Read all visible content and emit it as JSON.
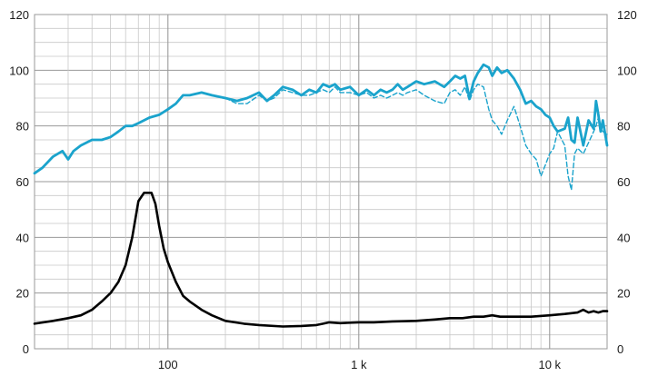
{
  "chart_data": {
    "type": "line",
    "title": "",
    "xlabel": "",
    "ylabel": "",
    "xscale": "log",
    "xlim": [
      20,
      20000
    ],
    "ylim": [
      0,
      120
    ],
    "grid": true,
    "legend": "none",
    "y_ticks": [
      0,
      20,
      40,
      60,
      80,
      100,
      120
    ],
    "y_tick_labels": [
      "0",
      "20",
      "40",
      "60",
      "80",
      "100",
      "120"
    ],
    "x_ticks": [
      100,
      1000,
      10000
    ],
    "x_tick_labels": [
      "100",
      "1 k",
      "10 k"
    ],
    "series": [
      {
        "color": "#1aa3cc",
        "style": "solid",
        "x": [
          20,
          22,
          25,
          28,
          30,
          32,
          35,
          40,
          45,
          50,
          55,
          60,
          65,
          70,
          80,
          90,
          100,
          110,
          120,
          130,
          150,
          170,
          200,
          230,
          260,
          300,
          330,
          360,
          400,
          450,
          500,
          550,
          600,
          650,
          700,
          750,
          800,
          900,
          1000,
          1100,
          1200,
          1300,
          1400,
          1500,
          1600,
          1700,
          1800,
          2000,
          2200,
          2500,
          2800,
          3000,
          3200,
          3400,
          3600,
          3800,
          4000,
          4200,
          4500,
          4800,
          5000,
          5300,
          5600,
          6000,
          6500,
          7000,
          7500,
          8000,
          8500,
          9000,
          9500,
          10000,
          10500,
          11000,
          12000,
          12500,
          13000,
          13500,
          14000,
          15000,
          16000,
          17000,
          17500,
          18000,
          18500,
          19000,
          20000
        ],
        "y": [
          63,
          65,
          69,
          71,
          68,
          71,
          73,
          75,
          75,
          76,
          78,
          80,
          80,
          81,
          83,
          84,
          86,
          88,
          91,
          91,
          92,
          91,
          90,
          89,
          90,
          92,
          89,
          91,
          94,
          93,
          91,
          93,
          92,
          95,
          94,
          95,
          93,
          94,
          91,
          93,
          91,
          93,
          92,
          93,
          95,
          93,
          94,
          96,
          95,
          96,
          94,
          96,
          98,
          97,
          98,
          90,
          96,
          99,
          102,
          101,
          98,
          101,
          99,
          100,
          97,
          93,
          88,
          89,
          87,
          86,
          84,
          83,
          80,
          78,
          79,
          83,
          75,
          74,
          83,
          73,
          82,
          79,
          89,
          84,
          78,
          82,
          73
        ]
      },
      {
        "color": "#1aa3cc",
        "style": "dashed",
        "x": [
          200,
          230,
          260,
          300,
          330,
          360,
          400,
          450,
          500,
          550,
          600,
          650,
          700,
          750,
          800,
          900,
          1000,
          1100,
          1200,
          1300,
          1400,
          1500,
          1600,
          1700,
          1800,
          2000,
          2200,
          2500,
          2800,
          3000,
          3200,
          3400,
          3600,
          3800,
          4000,
          4200,
          4500,
          4800,
          5000,
          5300,
          5600,
          6000,
          6500,
          7000,
          7500,
          8000,
          8500,
          9000,
          9500,
          10000,
          10500,
          11000,
          12000,
          12500,
          13000,
          13500,
          14000,
          15000,
          16000,
          17000,
          17500,
          18000,
          18500,
          19000,
          20000
        ],
        "y": [
          90,
          88,
          88,
          91,
          89,
          90,
          93,
          92,
          91,
          91,
          92,
          93,
          92,
          94,
          92,
          92,
          91,
          92,
          90,
          91,
          90,
          91,
          92,
          91,
          92,
          93,
          91,
          89,
          88,
          92,
          93,
          91,
          94,
          89,
          93,
          95,
          94,
          86,
          82,
          80,
          77,
          82,
          87,
          80,
          73,
          70,
          68,
          62,
          66,
          70,
          72,
          78,
          73,
          62,
          57,
          70,
          72,
          70,
          74,
          78,
          80,
          83,
          79,
          78,
          77
        ]
      },
      {
        "color": "#000000",
        "style": "solid",
        "x": [
          20,
          25,
          30,
          35,
          40,
          45,
          50,
          55,
          60,
          65,
          70,
          75,
          78,
          82,
          86,
          90,
          95,
          100,
          110,
          120,
          130,
          150,
          170,
          200,
          250,
          300,
          400,
          500,
          600,
          650,
          700,
          800,
          1000,
          1200,
          1500,
          2000,
          2500,
          3000,
          3500,
          4000,
          4500,
          5000,
          5500,
          6000,
          7000,
          8000,
          10000,
          12000,
          14000,
          15000,
          16000,
          17000,
          18000,
          19000,
          20000
        ],
        "y": [
          9,
          10,
          11,
          12,
          14,
          17,
          20,
          24,
          30,
          40,
          53,
          56,
          56,
          56,
          52,
          44,
          36,
          31,
          24,
          19,
          17,
          14,
          12,
          10,
          9,
          8.5,
          8,
          8.2,
          8.5,
          9,
          9.5,
          9.2,
          9.5,
          9.5,
          9.8,
          10,
          10.5,
          11,
          11,
          11.5,
          11.5,
          12,
          11.5,
          11.5,
          11.5,
          11.5,
          12,
          12.5,
          13,
          14,
          13,
          13.5,
          13,
          13.5,
          13.5
        ]
      }
    ]
  }
}
